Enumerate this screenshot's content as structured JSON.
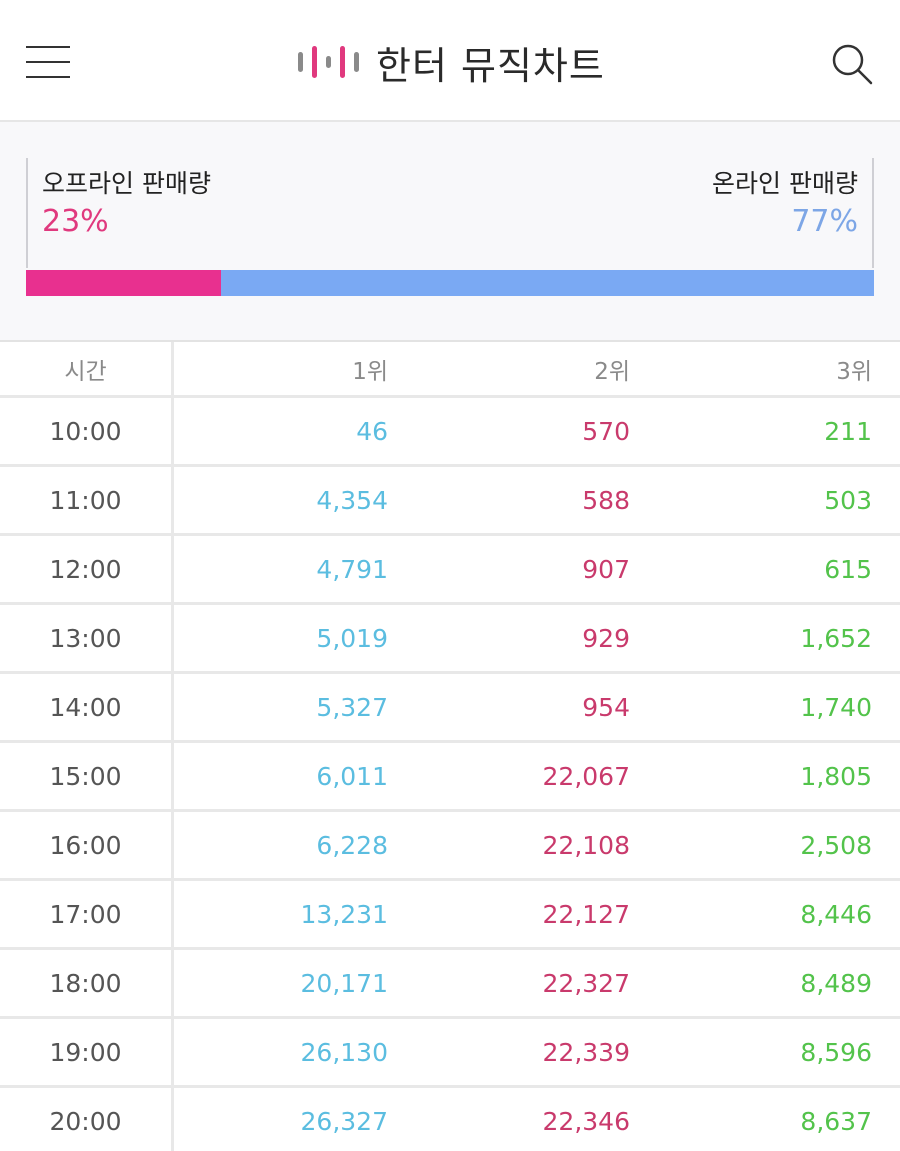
{
  "header": {
    "title": "한터 뮤직차트",
    "menu_icon": "hamburger-menu-icon",
    "search_icon": "search-icon",
    "logo_icon": "bar-logo-icon",
    "logo_colors": [
      "#8a8a8a",
      "#e0397e",
      "#8a8a8a",
      "#e0397e",
      "#8a8a8a"
    ]
  },
  "sales": {
    "offline_label": "오프라인 판매량",
    "offline_percent": "23%",
    "online_label": "온라인 판매량",
    "online_percent": "77%",
    "offline_fraction": 0.23,
    "online_fraction": 0.77,
    "offline_color": "#e8308f",
    "online_color": "#7aa9f3"
  },
  "table": {
    "headers": [
      "시간",
      "1위",
      "2위",
      "3위"
    ],
    "rows": [
      {
        "time": "10:00",
        "r1": "46",
        "r2": "570",
        "r3": "211"
      },
      {
        "time": "11:00",
        "r1": "4,354",
        "r2": "588",
        "r3": "503"
      },
      {
        "time": "12:00",
        "r1": "4,791",
        "r2": "907",
        "r3": "615"
      },
      {
        "time": "13:00",
        "r1": "5,019",
        "r2": "929",
        "r3": "1,652"
      },
      {
        "time": "14:00",
        "r1": "5,327",
        "r2": "954",
        "r3": "1,740"
      },
      {
        "time": "15:00",
        "r1": "6,011",
        "r2": "22,067",
        "r3": "1,805"
      },
      {
        "time": "16:00",
        "r1": "6,228",
        "r2": "22,108",
        "r3": "2,508"
      },
      {
        "time": "17:00",
        "r1": "13,231",
        "r2": "22,127",
        "r3": "8,446"
      },
      {
        "time": "18:00",
        "r1": "20,171",
        "r2": "22,327",
        "r3": "8,489"
      },
      {
        "time": "19:00",
        "r1": "26,130",
        "r2": "22,339",
        "r3": "8,596"
      },
      {
        "time": "20:00",
        "r1": "26,327",
        "r2": "22,346",
        "r3": "8,637"
      }
    ]
  }
}
